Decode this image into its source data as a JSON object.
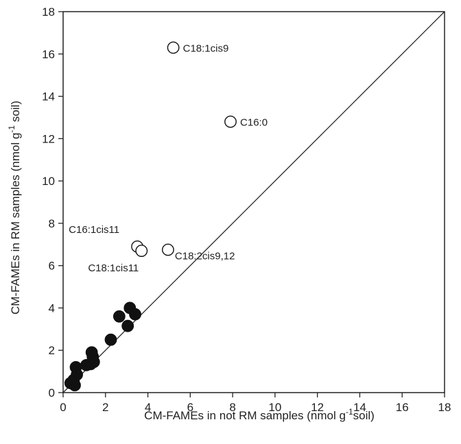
{
  "chart_data": {
    "type": "scatter",
    "xlabel": "CM-FAMEs in not RM samples (nmol g",
    "xlabel_sup": "-1",
    "xlabel_suffix": "soil)",
    "ylabel": "CM-FAMEs in RM samples (nmol g",
    "ylabel_sup": "-1",
    "ylabel_suffix": " soil)",
    "xlim": [
      0,
      18
    ],
    "ylim": [
      0,
      18
    ],
    "x_ticks": [
      0,
      2,
      4,
      6,
      8,
      10,
      12,
      14,
      16,
      18
    ],
    "y_ticks": [
      0,
      2,
      4,
      6,
      8,
      10,
      12,
      14,
      16,
      18
    ],
    "reference_line": {
      "from": [
        0,
        0
      ],
      "to": [
        18,
        18
      ]
    },
    "series": [
      {
        "marker": "open-circle",
        "points": [
          {
            "x": 5.2,
            "y": 16.3,
            "label": "C18:1cis9"
          },
          {
            "x": 7.9,
            "y": 12.8,
            "label": "C16:0"
          },
          {
            "x": 3.5,
            "y": 6.9,
            "label": "C16:1cis11"
          },
          {
            "x": 3.7,
            "y": 6.7,
            "label": "C18:1cis11"
          },
          {
            "x": 4.95,
            "y": 6.75,
            "label": "C18:2cis9,12"
          }
        ]
      },
      {
        "marker": "filled-circle",
        "points": [
          {
            "x": 0.35,
            "y": 0.45
          },
          {
            "x": 0.5,
            "y": 0.6
          },
          {
            "x": 0.55,
            "y": 0.35
          },
          {
            "x": 0.6,
            "y": 1.2
          },
          {
            "x": 0.65,
            "y": 0.85
          },
          {
            "x": 1.1,
            "y": 1.3
          },
          {
            "x": 1.3,
            "y": 1.35
          },
          {
            "x": 1.35,
            "y": 1.9
          },
          {
            "x": 1.4,
            "y": 1.7
          },
          {
            "x": 1.45,
            "y": 1.45
          },
          {
            "x": 2.25,
            "y": 2.5
          },
          {
            "x": 2.65,
            "y": 3.6
          },
          {
            "x": 3.05,
            "y": 3.15
          },
          {
            "x": 3.15,
            "y": 4.0
          },
          {
            "x": 3.4,
            "y": 3.7
          }
        ]
      }
    ]
  }
}
